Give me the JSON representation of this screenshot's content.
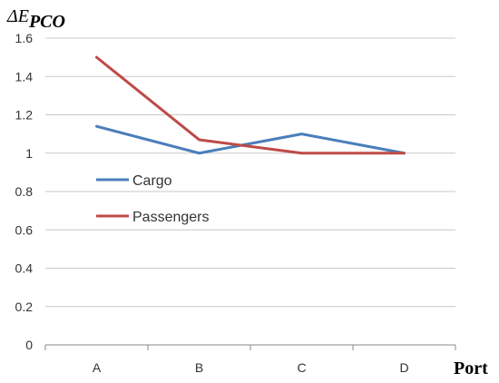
{
  "chart_data": {
    "type": "line",
    "ylabel_symbol": "ΔE",
    "ylabel_subscript": "PCO",
    "xlabel": "Port",
    "categories": [
      "A",
      "B",
      "C",
      "D"
    ],
    "yticks": [
      "0",
      "0.2",
      "0.4",
      "0.6",
      "0.8",
      "1",
      "1.2",
      "1.4",
      "1.6"
    ],
    "ylim": [
      0,
      1.6
    ],
    "grid": true,
    "legend_position": "inside-left",
    "series": [
      {
        "name": "Cargo",
        "color": "#4a7ebb",
        "values": [
          1.14,
          1.0,
          1.1,
          1.0
        ]
      },
      {
        "name": "Passengers",
        "color": "#be4b48",
        "values": [
          1.5,
          1.07,
          1.0,
          1.0
        ]
      }
    ]
  }
}
